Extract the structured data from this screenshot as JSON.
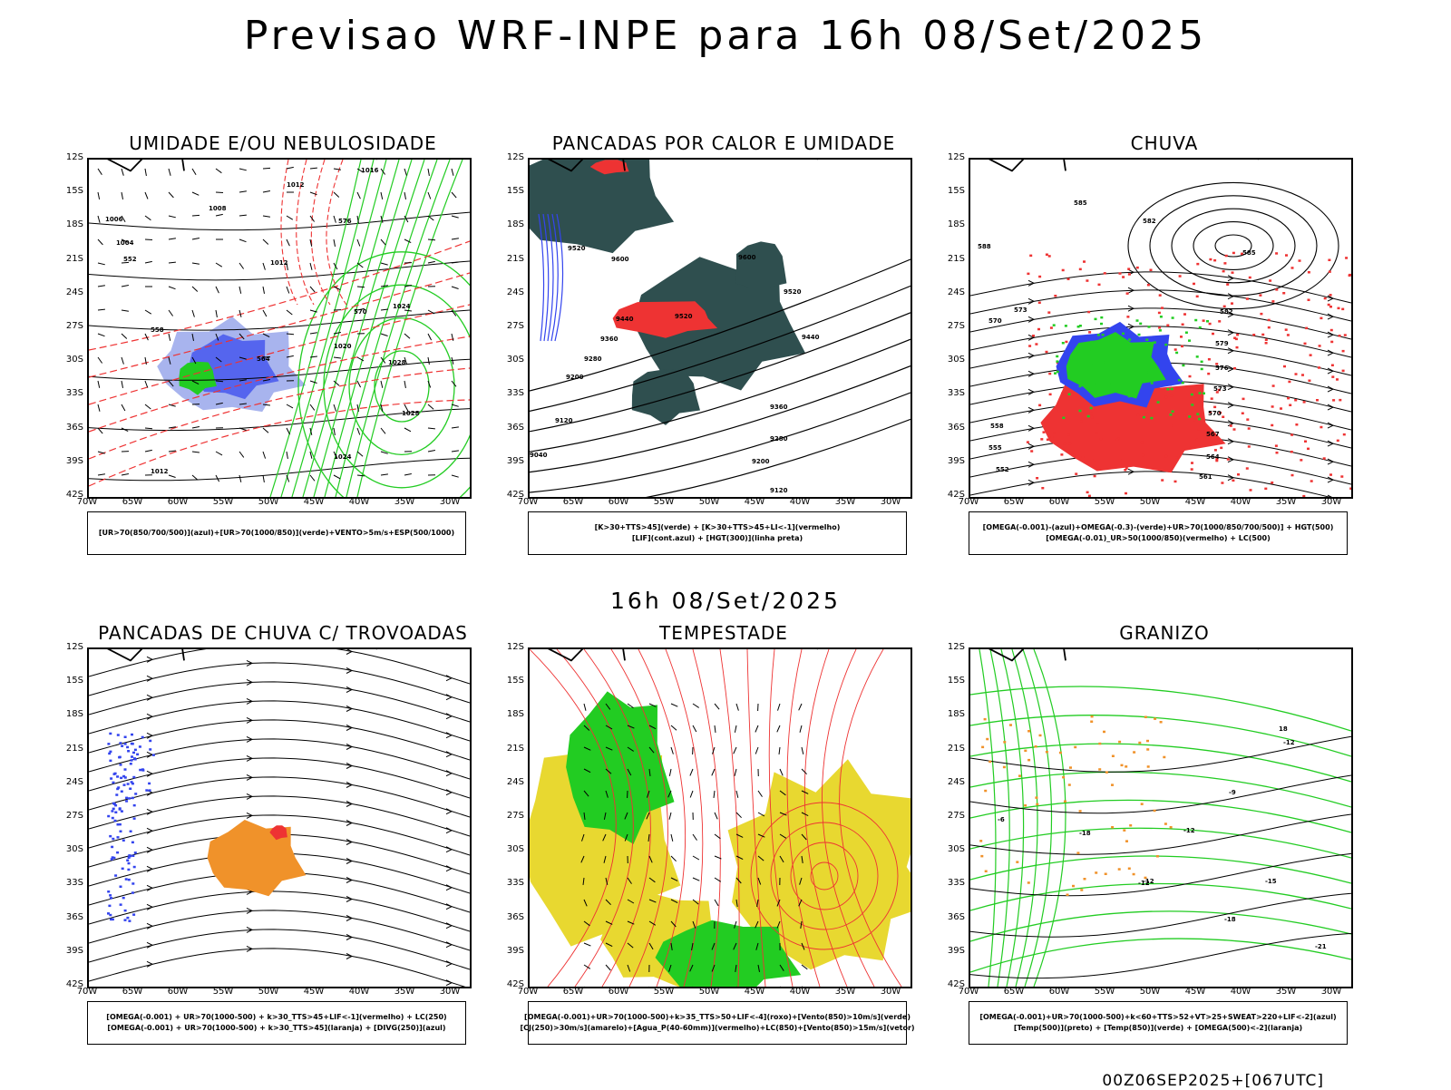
{
  "header": {
    "title": "Previsao WRF-INPE  para 16h 08/Set/2025",
    "subtitle": "16h 08/Set/2025",
    "run_stamp": "00Z06SEP2025+[067UTC]"
  },
  "axes": {
    "latitudes": [
      "12S",
      "15S",
      "18S",
      "21S",
      "24S",
      "27S",
      "30S",
      "33S",
      "36S",
      "39S",
      "42S"
    ],
    "longitudes": [
      "70W",
      "65W",
      "60W",
      "55W",
      "50W",
      "45W",
      "40W",
      "35W",
      "30W"
    ]
  },
  "panels": [
    {
      "title": "UMIDADE E/OU NEBULOSIDADE",
      "legend": [
        "[UR>70(850/700/500)](azul)+[UR>70(1000/850)](verde)+VENTO>5m/s+ESP(500/1000)"
      ],
      "contour_labels": [
        "1016",
        "1012",
        "1008",
        "1006",
        "1004",
        "1012",
        "1020",
        "1024",
        "1028",
        "1028",
        "1024",
        "1012",
        "576",
        "570",
        "564",
        "558",
        "552"
      ]
    },
    {
      "title": "PANCADAS POR CALOR E UMIDADE",
      "legend": [
        "[K>30+TTS>45](verde) + [K>30+TTS>45+LI<-1](vermelho)",
        "[LIF](cont.azul) + [HGT(300)](linha preta)"
      ],
      "contour_labels": [
        "9520",
        "9600",
        "9600",
        "9520",
        "9440",
        "9360",
        "9280",
        "9200",
        "9120",
        "9040",
        "9440",
        "9360",
        "9280",
        "9200",
        "9120",
        "9520"
      ]
    },
    {
      "title": "CHUVA",
      "legend": [
        "[OMEGA(-0.001)-(azul)+OMEGA(-0.3)-(verde)+UR>70(1000/850/700/500)] + HGT(500)",
        "[OMEGA(-0.01)_UR>50(1000/850)(vermelho) + LC(500)"
      ],
      "contour_labels": [
        "585",
        "582",
        "588",
        "585",
        "582",
        "579",
        "576",
        "573",
        "570",
        "567",
        "564",
        "561",
        "558",
        "555",
        "552",
        "570",
        "573"
      ]
    },
    {
      "title": "PANCADAS DE CHUVA C/ TROVOADAS",
      "legend": [
        "[OMEGA(-0.001) + UR>70(1000-500) + k>30_TTS>45+LIF<-1](vermelho) + LC(250)",
        "[OMEGA(-0.001) + UR>70(1000-500) + k>30_TTS>45](laranja) + [DIVG(250)](azul)"
      ],
      "contour_labels": []
    },
    {
      "title": "TEMPESTADE",
      "legend": [
        "[OMEGA(-0.001)+UR>70(1000-500)+k>35_TTS>50+LIF<-4](roxo)+[Vento(850)>10m/s](verde)",
        "[CJ(250)>30m/s](amarelo)+[Agua_P(40-60mm)](vermelho)+LC(850)+[Vento(850)>15m/s](vetor)"
      ],
      "contour_labels": []
    },
    {
      "title": "GRANIZO",
      "legend": [
        "[OMEGA(-0.001)+UR>70(1000-500)+k<60+TTS>52+VT>25+SWEAT>220+LIF<-2](azul)",
        "[Temp(500)](preto) + [Temp(850)](verde) + [OMEGA(500)<-2](laranja)"
      ],
      "contour_labels": [
        "-12",
        "-9",
        "-12",
        "-15",
        "-18",
        "-21",
        "-12",
        "-18",
        "-6",
        "18",
        "-12"
      ]
    }
  ],
  "colors": {
    "green": "#22cc22",
    "red": "#ee3333",
    "blue": "#3344ee",
    "lightblue": "#a8b4ee",
    "darkteal": "#2f4f4f",
    "yellow": "#e8d830",
    "orange": "#f0922a",
    "black": "#000000"
  }
}
